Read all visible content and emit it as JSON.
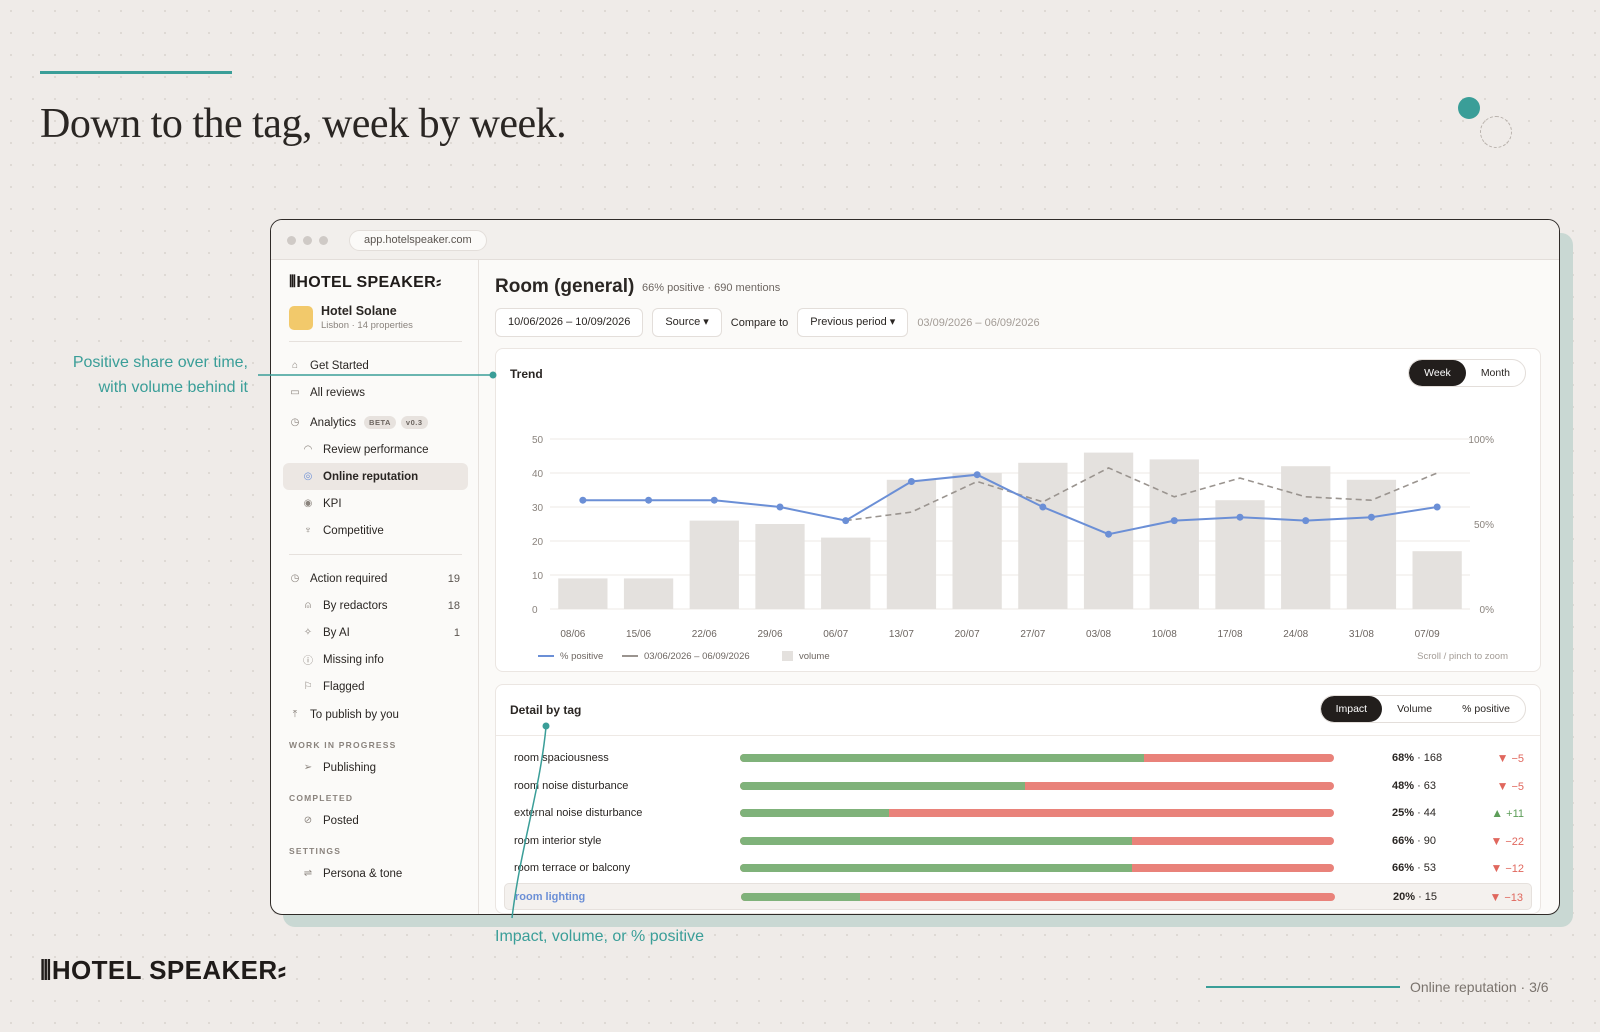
{
  "slide": {
    "headline": "Down to the tag, week by week.",
    "callout_trend_line1": "Positive share over time,",
    "callout_trend_line2": "with volume behind it",
    "callout_detail": "Impact, volume, or % positive",
    "footer_logo": "HOTEL SPEAKER",
    "footer_page": "Online reputation · 3/6",
    "accent_color": "#3a9e98"
  },
  "browser": {
    "url": "app.hotelspeaker.com"
  },
  "sidebar": {
    "logo": "HOTEL SPEAKER",
    "hotel_name": "Hotel Solane",
    "hotel_sub": "Lisbon · 14 properties",
    "get_started": "Get Started",
    "all_reviews": "All reviews",
    "analytics": "Analytics",
    "analytics_badge_beta": "BETA",
    "analytics_badge_version": "v0.3",
    "review_performance": "Review performance",
    "online_reputation": "Online reputation",
    "kpi": "KPI",
    "competitive": "Competitive",
    "action_required": "Action required",
    "action_required_count": "19",
    "by_redactors": "By redactors",
    "by_redactors_count": "18",
    "by_ai": "By AI",
    "by_ai_count": "1",
    "missing_info": "Missing info",
    "flagged": "Flagged",
    "to_publish": "To publish by you",
    "section_wip": "WORK IN PROGRESS",
    "publishing": "Publishing",
    "section_completed": "COMPLETED",
    "posted": "Posted",
    "section_settings": "SETTINGS",
    "persona_tone": "Persona & tone"
  },
  "main": {
    "title": "Room (general)",
    "stats": "66% positive · 690 mentions",
    "date_range": "10/06/2026 – 10/09/2026",
    "source_label": "Source",
    "compare_label": "Compare to",
    "compare_value": "Previous period",
    "compare_range": "03/09/2026 – 06/09/2026"
  },
  "trend": {
    "title": "Trend",
    "toggle_week": "Week",
    "toggle_month": "Month",
    "hint": "Scroll / pinch to zoom"
  },
  "chart_data": {
    "type": "bar",
    "categories": [
      "08/06",
      "15/06",
      "22/06",
      "29/06",
      "06/07",
      "13/07",
      "20/07",
      "27/07",
      "03/08",
      "10/08",
      "17/08",
      "24/08",
      "31/08",
      "07/09"
    ],
    "left_axis_ticks": [
      "0",
      "10",
      "20",
      "30",
      "40",
      "50"
    ],
    "right_axis_ticks": [
      "0%",
      "50%",
      "100%"
    ],
    "ylim": [
      0,
      50
    ],
    "y2lim": [
      0,
      100
    ],
    "series": [
      {
        "name": "volume",
        "kind": "bar",
        "axis": "left",
        "color": "#e4e1de",
        "values": [
          9,
          9,
          26,
          25,
          21,
          38,
          40,
          43,
          46,
          44,
          32,
          42,
          38,
          17
        ]
      },
      {
        "name": "% positive",
        "kind": "line",
        "axis": "right",
        "color": "#6b8fd6",
        "values": [
          64,
          64,
          64,
          60,
          52,
          75,
          79,
          60,
          44,
          52,
          54,
          52,
          54,
          60
        ]
      },
      {
        "name": "03/06/2026 – 06/09/2026",
        "kind": "dashed-line",
        "axis": "right",
        "color": "#9a948f",
        "values": [
          null,
          null,
          null,
          null,
          52,
          57,
          75,
          63,
          83,
          66,
          77,
          66,
          64,
          80
        ]
      }
    ],
    "legend_placement": "bottom-left",
    "grid": true
  },
  "detail": {
    "title": "Detail by tag",
    "toggle_impact": "Impact",
    "toggle_volume": "Volume",
    "toggle_positive": "% positive",
    "rows": [
      {
        "tag": "room spaciousness",
        "positive_pct": 68,
        "pct_label": "68%",
        "count": "168",
        "delta": "−5",
        "direction": "down"
      },
      {
        "tag": "room noise disturbance",
        "positive_pct": 48,
        "pct_label": "48%",
        "count": "63",
        "delta": "−5",
        "direction": "down"
      },
      {
        "tag": "external noise disturbance",
        "positive_pct": 25,
        "pct_label": "25%",
        "count": "44",
        "delta": "+11",
        "direction": "up"
      },
      {
        "tag": "room interior style",
        "positive_pct": 66,
        "pct_label": "66%",
        "count": "90",
        "delta": "−22",
        "direction": "down"
      },
      {
        "tag": "room terrace or balcony",
        "positive_pct": 66,
        "pct_label": "66%",
        "count": "53",
        "delta": "−12",
        "direction": "down"
      },
      {
        "tag": "room lighting",
        "positive_pct": 20,
        "pct_label": "20%",
        "count": "15",
        "delta": "−13",
        "direction": "down"
      }
    ]
  }
}
